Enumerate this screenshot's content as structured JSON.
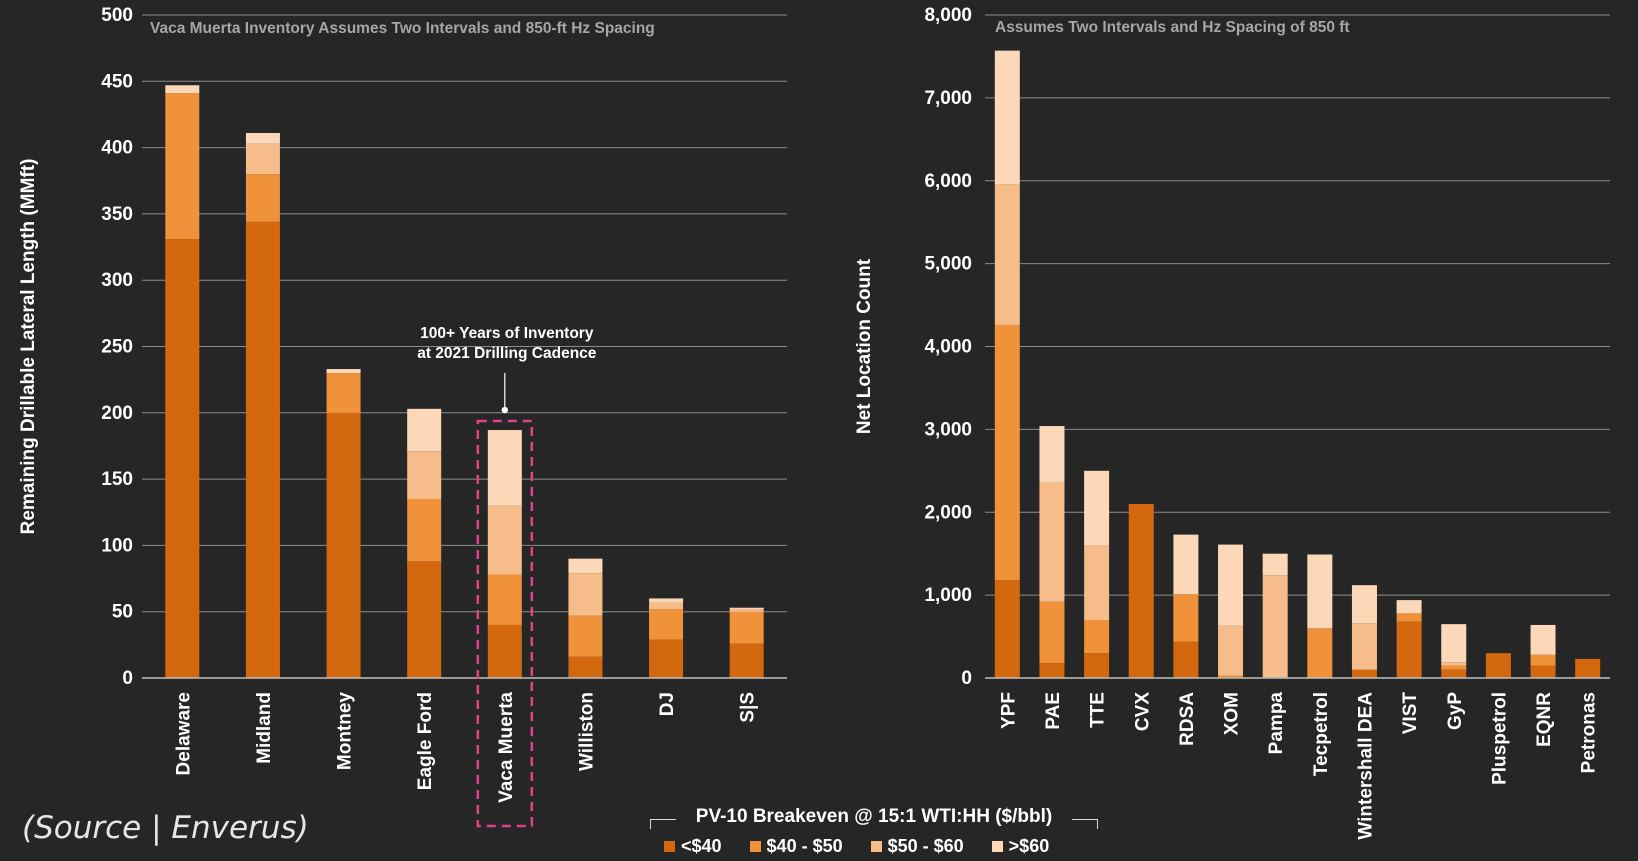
{
  "colors": {
    "background": "#262626",
    "grid": "#8c8c8c",
    "axis": "#bfbfbf",
    "highlight": "#e0408c",
    "series": [
      "#d4680e",
      "#f0923a",
      "#f6bc8a",
      "#fcd8b8"
    ]
  },
  "source_text": "(Source | Enverus)",
  "legend": {
    "title": "PV-10 Breakeven @ 15:1 WTI:HH ($/bbl)",
    "items": [
      "<$40",
      "$40 - $50",
      "$50 - $60",
      ">$60"
    ]
  },
  "annotation": {
    "lines": [
      "100+ Years of Inventory",
      "at 2021 Drilling Cadence"
    ],
    "target_category": "Vaca Muerta"
  },
  "chart_data": [
    {
      "type": "bar",
      "stacked": true,
      "subtitle": "Vaca Muerta Inventory Assumes Two Intervals and 850-ft Hz Spacing",
      "ylabel": "Remaining Drillable Lateral Length (MMft)",
      "ylim": [
        0,
        500
      ],
      "yticks": [
        0,
        50,
        100,
        150,
        200,
        250,
        300,
        350,
        400,
        450,
        500
      ],
      "ytick_labels": [
        "0",
        "50",
        "100",
        "150",
        "200",
        "250",
        "300",
        "350",
        "400",
        "450",
        "500"
      ],
      "grid": true,
      "categories": [
        "Delaware",
        "Midland",
        "Montney",
        "Eagle Ford",
        "Vaca Muerta",
        "Williston",
        "DJ",
        "S|S"
      ],
      "series": [
        {
          "name": "<$40",
          "values": [
            331,
            344,
            200,
            88,
            40,
            16,
            29,
            26
          ]
        },
        {
          "name": "$40 - $50",
          "values": [
            110,
            36,
            30,
            47,
            38,
            31,
            23,
            24
          ]
        },
        {
          "name": "$50 - $60",
          "values": [
            0,
            23,
            0,
            36,
            52,
            32,
            5,
            2
          ]
        },
        {
          "name": ">$60",
          "values": [
            6,
            8,
            3,
            32,
            57,
            11,
            3,
            1
          ]
        }
      ]
    },
    {
      "type": "bar",
      "stacked": true,
      "subtitle": "Assumes Two Intervals and Hz Spacing of 850 ft",
      "ylabel": "Net Location Count",
      "ylim": [
        0,
        8000
      ],
      "yticks": [
        0,
        1000,
        2000,
        3000,
        4000,
        5000,
        6000,
        7000,
        8000
      ],
      "ytick_labels": [
        "0",
        "1,000",
        "2,000",
        "3,000",
        "4,000",
        "5,000",
        "6,000",
        "7,000",
        "8,000"
      ],
      "grid": true,
      "categories": [
        "YPF",
        "PAE",
        "TTE",
        "CVX",
        "RDSA",
        "XOM",
        "Pampa",
        "Tecpetrol",
        "Wintershall DEA",
        "VIST",
        "GyP",
        "Pluspetrol",
        "EQNR",
        "Petronas"
      ],
      "series": [
        {
          "name": "<$40",
          "values": [
            1180,
            180,
            300,
            2100,
            440,
            10,
            0,
            0,
            100,
            680,
            100,
            300,
            150,
            230
          ]
        },
        {
          "name": "$40 - $50",
          "values": [
            3080,
            740,
            400,
            0,
            570,
            20,
            10,
            600,
            0,
            100,
            50,
            0,
            130,
            0
          ]
        },
        {
          "name": "$50 - $60",
          "values": [
            1700,
            1440,
            900,
            0,
            0,
            600,
            1230,
            0,
            560,
            0,
            40,
            0,
            0,
            0
          ]
        },
        {
          "name": ">$60",
          "values": [
            1610,
            680,
            900,
            0,
            720,
            980,
            260,
            890,
            460,
            160,
            460,
            0,
            360,
            0
          ]
        }
      ]
    }
  ]
}
